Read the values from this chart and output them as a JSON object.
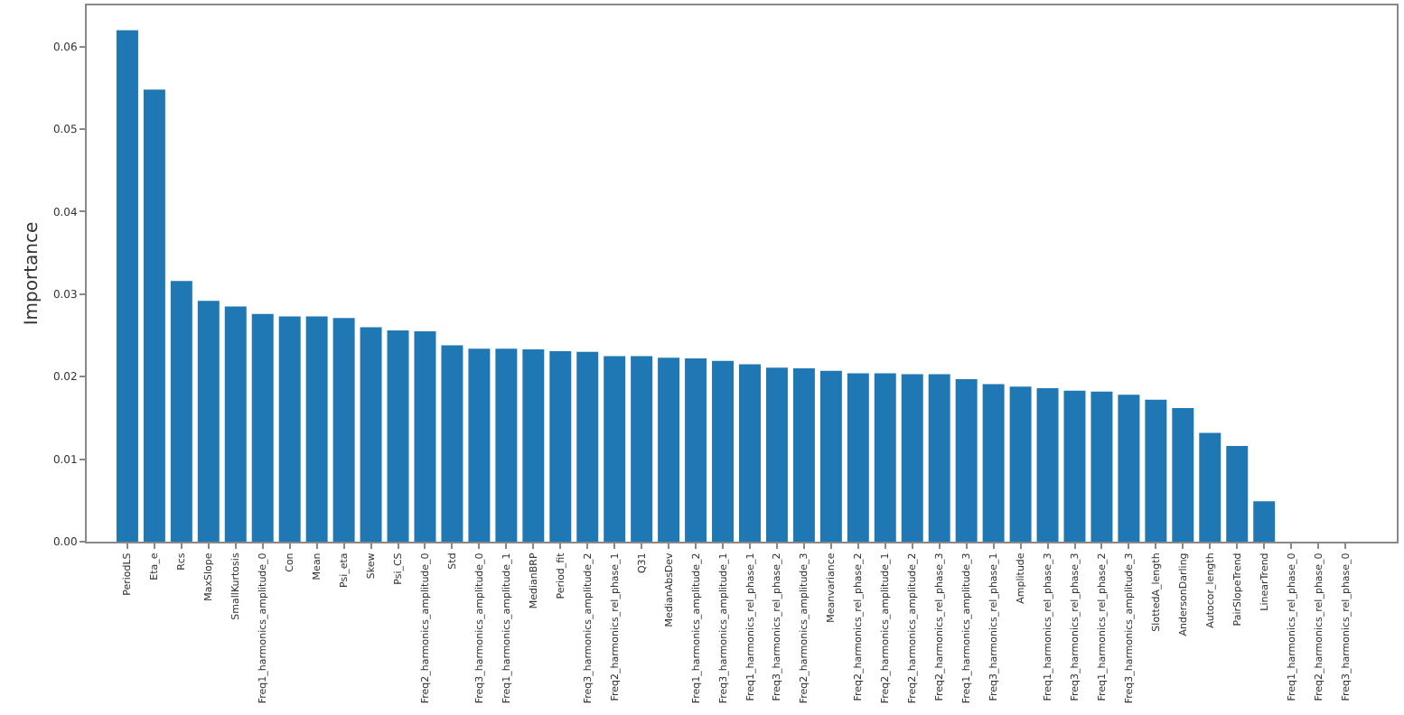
{
  "chart_data": {
    "type": "bar",
    "ylabel": "Importance",
    "categories": [
      "PeriodLS",
      "Eta_e",
      "Rcs",
      "MaxSlope",
      "SmallKurtosis",
      "Freq1_harmonics_amplitude_0",
      "Con",
      "Mean",
      "Psi_eta",
      "Skew",
      "Psi_CS",
      "Freq2_harmonics_amplitude_0",
      "Std",
      "Freq3_harmonics_amplitude_0",
      "Freq1_harmonics_amplitude_1",
      "MedianBRP",
      "Period_fit",
      "Freq3_harmonics_amplitude_2",
      "Freq2_harmonics_rel_phase_1",
      "Q31",
      "MedianAbsDev",
      "Freq1_harmonics_amplitude_2",
      "Freq3_harmonics_amplitude_1",
      "Freq1_harmonics_rel_phase_1",
      "Freq3_harmonics_rel_phase_2",
      "Freq2_harmonics_amplitude_3",
      "Meanvariance",
      "Freq2_harmonics_rel_phase_2",
      "Freq2_harmonics_amplitude_1",
      "Freq2_harmonics_amplitude_2",
      "Freq2_harmonics_rel_phase_3",
      "Freq1_harmonics_amplitude_3",
      "Freq3_harmonics_rel_phase_1",
      "Amplitude",
      "Freq1_harmonics_rel_phase_3",
      "Freq3_harmonics_rel_phase_3",
      "Freq1_harmonics_rel_phase_2",
      "Freq3_harmonics_amplitude_3",
      "SlottedA_length",
      "AndersonDarling",
      "Autocor_length",
      "PairSlopeTrend",
      "LinearTrend",
      "Freq1_harmonics_rel_phase_0",
      "Freq2_harmonics_rel_phase_0",
      "Freq3_harmonics_rel_phase_0"
    ],
    "values": [
      0.062,
      0.0548,
      0.0316,
      0.0292,
      0.0285,
      0.0276,
      0.0273,
      0.0273,
      0.0271,
      0.026,
      0.0256,
      0.0255,
      0.0238,
      0.0234,
      0.0234,
      0.0233,
      0.0231,
      0.023,
      0.0225,
      0.0225,
      0.0223,
      0.0222,
      0.0219,
      0.0215,
      0.0211,
      0.021,
      0.0207,
      0.0204,
      0.0204,
      0.0203,
      0.0203,
      0.0197,
      0.0191,
      0.0188,
      0.0186,
      0.0183,
      0.0182,
      0.0178,
      0.0172,
      0.0162,
      0.0132,
      0.0116,
      0.0049,
      0,
      0,
      0
    ],
    "color": "#1f77b4",
    "ylim": [
      0,
      0.065
    ],
    "yticks": [
      {
        "value": 0,
        "label": "0.00"
      },
      {
        "value": 0.01,
        "label": "0.01"
      },
      {
        "value": 0.02,
        "label": "0.02"
      },
      {
        "value": 0.03,
        "label": "0.03"
      },
      {
        "value": 0.04,
        "label": "0.04"
      },
      {
        "value": 0.05,
        "label": "0.05"
      },
      {
        "value": 0.06,
        "label": "0.06"
      }
    ]
  }
}
